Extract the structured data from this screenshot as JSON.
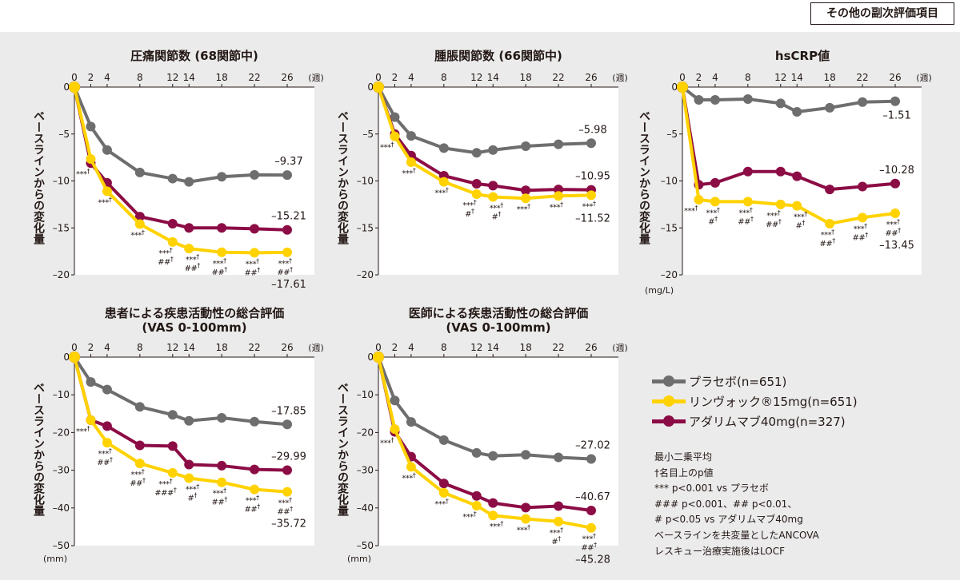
{
  "badge": "その他の副次評価項目",
  "colors": {
    "placebo": "#6e6e6e",
    "upadacitinib": "#ffd200",
    "adalimumab": "#8c0c45",
    "background": "#ebebeb"
  },
  "legend": [
    {
      "key": "placebo",
      "label": "プラセボ(n=651)"
    },
    {
      "key": "upadacitinib",
      "label": "リンヴォック®15mg(n=651)"
    },
    {
      "key": "adalimumab",
      "label": "アダリムマブ40mg(n=327)"
    }
  ],
  "notes": [
    "最小二乗平均",
    "†名目上のp値",
    "*** p<0.001 vs プラセボ",
    "### p<0.001、## p<0.01、",
    "# p<0.05 vs アダリムマブ40mg",
    "ベースラインを共変量としたANCOVA",
    "レスキュー治療実施後はLOCF"
  ],
  "chart_data": [
    {
      "type": "line",
      "title": [
        "圧痛関節数 (68関節中)"
      ],
      "ylabel": "ベースラインからの変化量",
      "unit": "",
      "x_unit": "(週)",
      "x": [
        0,
        2,
        4,
        8,
        12,
        14,
        18,
        22,
        26
      ],
      "ylim": [
        -20,
        0
      ],
      "y_ticks": [
        0,
        -5,
        -10,
        -15,
        -20
      ],
      "series": [
        {
          "key": "placebo",
          "name": "プラセボ",
          "values": [
            0,
            -4.2,
            -6.7,
            -9.1,
            -9.75,
            -10.1,
            -9.55,
            -9.35,
            -9.37
          ],
          "end_label": "–9.37",
          "label_pos": "above"
        },
        {
          "key": "adalimumab",
          "name": "アダリムマブ40mg",
          "values": [
            0,
            -8.1,
            -10.2,
            -13.8,
            -14.55,
            -15.0,
            -15.0,
            -15.1,
            -15.21
          ],
          "end_label": "–15.21",
          "label_pos": "above"
        },
        {
          "key": "upadacitinib",
          "name": "リンヴォック®15mg",
          "values": [
            0,
            -7.66,
            -11.1,
            -14.6,
            -16.5,
            -17.2,
            -17.6,
            -17.65,
            -17.61
          ],
          "end_label": "–17.61",
          "label_pos": "below"
        }
      ],
      "annotations": [
        {
          "week": 2,
          "lines": [
            "***†"
          ]
        },
        {
          "week": 4,
          "lines": [
            "***†"
          ]
        },
        {
          "week": 8,
          "lines": [
            "***†"
          ]
        },
        {
          "week": 12,
          "lines": [
            "***†",
            "##†"
          ]
        },
        {
          "week": 14,
          "lines": [
            "***†",
            "##†"
          ]
        },
        {
          "week": 18,
          "lines": [
            "***†",
            "##†"
          ]
        },
        {
          "week": 22,
          "lines": [
            "***†",
            "##†"
          ]
        },
        {
          "week": 26,
          "lines": [
            "***†",
            "##†"
          ]
        }
      ]
    },
    {
      "type": "line",
      "title": [
        "腫脹関節数 (66関節中)"
      ],
      "ylabel": "ベースラインからの変化量",
      "unit": "",
      "x_unit": "(週)",
      "x": [
        0,
        2,
        4,
        8,
        12,
        14,
        18,
        22,
        26
      ],
      "ylim": [
        -20,
        0
      ],
      "y_ticks": [
        0,
        -5,
        -10,
        -15,
        -20
      ],
      "series": [
        {
          "key": "placebo",
          "name": "プラセボ",
          "values": [
            0,
            -3.2,
            -5.2,
            -6.5,
            -7.0,
            -6.7,
            -6.3,
            -6.1,
            -5.98
          ],
          "end_label": "–5.98",
          "label_pos": "above"
        },
        {
          "key": "adalimumab",
          "name": "アダリムマブ40mg",
          "values": [
            0,
            -5.0,
            -7.3,
            -9.45,
            -10.3,
            -10.5,
            -11.0,
            -10.9,
            -10.95
          ],
          "end_label": "–10.95",
          "label_pos": "above"
        },
        {
          "key": "upadacitinib",
          "name": "リンヴォック®15mg",
          "values": [
            0,
            -5.25,
            -8.0,
            -10.1,
            -11.4,
            -11.7,
            -11.85,
            -11.6,
            -11.52
          ],
          "end_label": "–11.52",
          "label_pos": "below"
        }
      ],
      "annotations": [
        {
          "week": 2,
          "lines": [
            "***†"
          ]
        },
        {
          "week": 4,
          "lines": [
            "***†"
          ]
        },
        {
          "week": 8,
          "lines": [
            "***†"
          ]
        },
        {
          "week": 12,
          "lines": [
            "***†",
            "#†"
          ]
        },
        {
          "week": 14,
          "lines": [
            "***†",
            "#†"
          ]
        },
        {
          "week": 18,
          "lines": [
            "***†"
          ]
        },
        {
          "week": 22,
          "lines": [
            "***†"
          ]
        },
        {
          "week": 26,
          "lines": [
            "***†"
          ]
        }
      ]
    },
    {
      "type": "line",
      "title": [
        "hsCRP値"
      ],
      "ylabel": "ベースラインからの変化量",
      "unit": "(mg/L)",
      "x_unit": "(週)",
      "x": [
        0,
        2,
        4,
        8,
        12,
        14,
        18,
        22,
        26
      ],
      "ylim": [
        -20,
        0
      ],
      "y_ticks": [
        0,
        -5,
        -10,
        -15,
        -20
      ],
      "series": [
        {
          "key": "placebo",
          "name": "プラセボ",
          "values": [
            0,
            -1.36,
            -1.36,
            -1.28,
            -1.73,
            -2.64,
            -2.2,
            -1.6,
            -1.51
          ],
          "end_label": "–1.51",
          "label_pos": "below"
        },
        {
          "key": "adalimumab",
          "name": "アダリムマブ40mg",
          "values": [
            0,
            -10.4,
            -10.2,
            -9.0,
            -9.0,
            -9.5,
            -10.9,
            -10.6,
            -10.28
          ],
          "end_label": "–10.28",
          "label_pos": "above"
        },
        {
          "key": "upadacitinib",
          "name": "リンヴォック®15mg",
          "values": [
            0,
            -12.0,
            -12.2,
            -12.2,
            -12.5,
            -12.65,
            -14.55,
            -13.9,
            -13.45
          ],
          "end_label": "–13.45",
          "label_pos": "below"
        }
      ],
      "annotations": [
        {
          "week": 2,
          "lines": [
            "***†"
          ]
        },
        {
          "week": 4,
          "lines": [
            "***†",
            "#†"
          ]
        },
        {
          "week": 8,
          "lines": [
            "***†",
            "##†"
          ]
        },
        {
          "week": 12,
          "lines": [
            "***†",
            "##†"
          ]
        },
        {
          "week": 14,
          "lines": [
            "***†",
            "#†"
          ]
        },
        {
          "week": 18,
          "lines": [
            "***†",
            "##†"
          ]
        },
        {
          "week": 22,
          "lines": [
            "***†",
            "##†"
          ]
        },
        {
          "week": 26,
          "lines": [
            "***†",
            "##†"
          ]
        }
      ]
    },
    {
      "type": "line",
      "title": [
        "患者による疾患活動性の総合評価",
        "(VAS 0-100mm)"
      ],
      "ylabel": "ベースラインからの変化量",
      "unit": "(mm)",
      "x_unit": "(週)",
      "x": [
        0,
        2,
        4,
        8,
        12,
        14,
        18,
        22,
        26
      ],
      "ylim": [
        -50,
        0
      ],
      "y_ticks": [
        0,
        -10,
        -20,
        -30,
        -40,
        -50
      ],
      "series": [
        {
          "key": "placebo",
          "name": "プラセボ",
          "values": [
            0,
            -6.6,
            -8.6,
            -13.2,
            -15.3,
            -16.9,
            -16.1,
            -17.1,
            -17.85
          ],
          "end_label": "–17.85",
          "label_pos": "above"
        },
        {
          "key": "adalimumab",
          "name": "アダリムマブ40mg",
          "values": [
            0,
            -16.7,
            -18.3,
            -23.4,
            -23.6,
            -28.5,
            -28.8,
            -29.8,
            -29.99
          ],
          "end_label": "–29.99",
          "label_pos": "above"
        },
        {
          "key": "upadacitinib",
          "name": "リンヴォック®15mg",
          "values": [
            0,
            -16.7,
            -22.7,
            -28.2,
            -30.7,
            -32.1,
            -33.2,
            -35.1,
            -35.72
          ],
          "end_label": "–35.72",
          "label_pos": "below"
        }
      ],
      "annotations": [
        {
          "week": 2,
          "lines": [
            "***†"
          ]
        },
        {
          "week": 4,
          "lines": [
            "***†",
            "##†"
          ]
        },
        {
          "week": 8,
          "lines": [
            "***†",
            "##†"
          ]
        },
        {
          "week": 12,
          "lines": [
            "***†",
            "###†"
          ]
        },
        {
          "week": 14,
          "lines": [
            "***†",
            "#†"
          ]
        },
        {
          "week": 18,
          "lines": [
            "***†",
            "##†"
          ]
        },
        {
          "week": 22,
          "lines": [
            "***†",
            "##†"
          ]
        },
        {
          "week": 26,
          "lines": [
            "***†",
            "##†"
          ]
        }
      ]
    },
    {
      "type": "line",
      "title": [
        "医師による疾患活動性の総合評価",
        "(VAS 0-100mm)"
      ],
      "ylabel": "ベースラインからの変化量",
      "unit": "(mm)",
      "x_unit": "(週)",
      "x": [
        0,
        2,
        4,
        8,
        12,
        14,
        18,
        22,
        26
      ],
      "ylim": [
        -50,
        0
      ],
      "y_ticks": [
        0,
        -10,
        -20,
        -30,
        -40,
        -50
      ],
      "series": [
        {
          "key": "placebo",
          "name": "プラセボ",
          "values": [
            0,
            -11.5,
            -17.2,
            -22.0,
            -25.4,
            -26.2,
            -25.9,
            -26.6,
            -27.02
          ],
          "end_label": "–27.02",
          "label_pos": "above"
        },
        {
          "key": "adalimumab",
          "name": "アダリムマブ40mg",
          "values": [
            0,
            -19.8,
            -26.4,
            -33.5,
            -36.8,
            -38.7,
            -39.9,
            -39.5,
            -40.67
          ],
          "end_label": "–40.67",
          "label_pos": "above"
        },
        {
          "key": "upadacitinib",
          "name": "リンヴォック®15mg",
          "values": [
            0,
            -19.1,
            -29.1,
            -36.0,
            -39.4,
            -42.0,
            -42.9,
            -43.6,
            -45.28
          ],
          "end_label": "–45.28",
          "label_pos": "below"
        }
      ],
      "annotations": [
        {
          "week": 2,
          "lines": [
            "***†"
          ]
        },
        {
          "week": 4,
          "lines": [
            "***†"
          ]
        },
        {
          "week": 8,
          "lines": [
            "***†"
          ]
        },
        {
          "week": 12,
          "lines": [
            "***†"
          ]
        },
        {
          "week": 14,
          "lines": [
            "***†"
          ]
        },
        {
          "week": 18,
          "lines": [
            "***†"
          ]
        },
        {
          "week": 22,
          "lines": [
            "***†",
            "#†"
          ]
        },
        {
          "week": 26,
          "lines": [
            "***†",
            "##†"
          ]
        }
      ]
    }
  ]
}
